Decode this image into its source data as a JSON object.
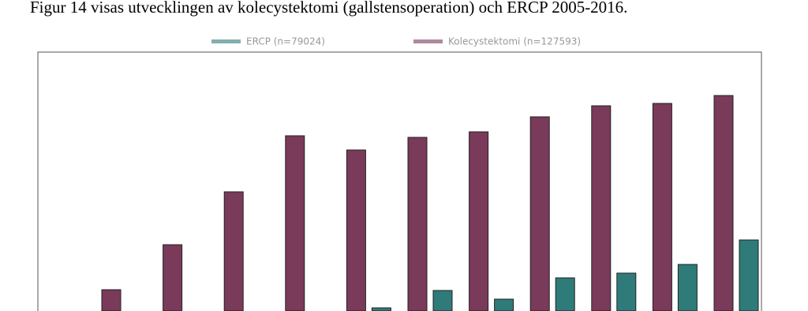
{
  "chart_data": {
    "type": "bar",
    "title": "Figur 14 visas utvecklingen av kolecystektomi (gallstensoperation) och ERCP 2005-2016.",
    "categories": [
      null,
      null,
      null,
      null,
      null,
      null,
      null,
      null,
      null,
      null,
      null,
      null
    ],
    "series": [
      {
        "name": "ERCP (n=79024)",
        "color": "#2f7b79",
        "values": [
          0,
          0,
          0,
          0,
          0,
          4,
          26,
          15,
          42,
          48,
          59,
          90
        ]
      },
      {
        "name": "Kolecystektomi (n=127593)",
        "color": "#7a3a5a",
        "values": [
          0,
          27,
          84,
          151,
          222,
          204,
          220,
          227,
          246,
          260,
          263,
          273
        ]
      }
    ],
    "ylim": [
      0,
      328
    ]
  }
}
